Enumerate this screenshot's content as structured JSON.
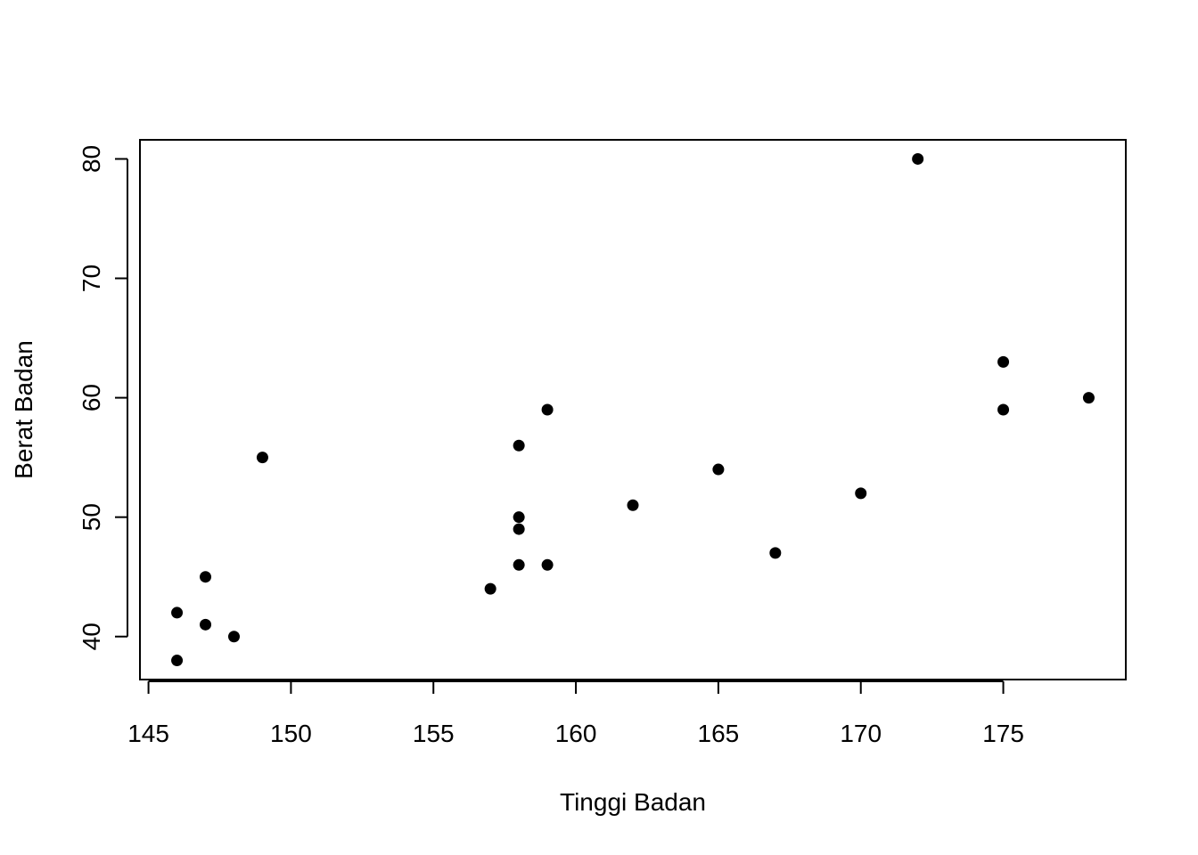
{
  "chart_data": {
    "type": "scatter",
    "title": "",
    "xlabel": "Tinggi Badan",
    "ylabel": "Berat Badan",
    "xlim": [
      144.7,
      179.3
    ],
    "ylim": [
      36.4,
      81.6
    ],
    "x_ticks": [
      145,
      150,
      155,
      160,
      165,
      170,
      175
    ],
    "y_ticks": [
      40,
      50,
      60,
      70,
      80
    ],
    "x_tick_labels": [
      "145",
      "150",
      "155",
      "160",
      "165",
      "170",
      "175"
    ],
    "y_tick_labels": [
      "40",
      "50",
      "60",
      "70",
      "80"
    ],
    "grid": false,
    "point_color": "#000000",
    "points": [
      {
        "x": 146,
        "y": 38
      },
      {
        "x": 146,
        "y": 42
      },
      {
        "x": 147,
        "y": 41
      },
      {
        "x": 147,
        "y": 45
      },
      {
        "x": 148,
        "y": 40
      },
      {
        "x": 149,
        "y": 55
      },
      {
        "x": 157,
        "y": 44
      },
      {
        "x": 158,
        "y": 46
      },
      {
        "x": 158,
        "y": 49
      },
      {
        "x": 158,
        "y": 50
      },
      {
        "x": 158,
        "y": 56
      },
      {
        "x": 159,
        "y": 46
      },
      {
        "x": 159,
        "y": 59
      },
      {
        "x": 162,
        "y": 51
      },
      {
        "x": 165,
        "y": 54
      },
      {
        "x": 167,
        "y": 47
      },
      {
        "x": 170,
        "y": 52
      },
      {
        "x": 172,
        "y": 80
      },
      {
        "x": 175,
        "y": 59
      },
      {
        "x": 175,
        "y": 63
      },
      {
        "x": 178,
        "y": 60
      }
    ]
  }
}
